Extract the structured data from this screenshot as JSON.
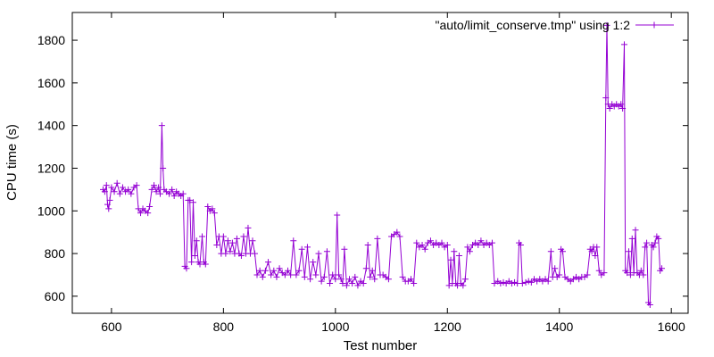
{
  "chart_data": {
    "type": "line",
    "title": "",
    "xlabel": "Test number",
    "ylabel": "CPU time (s)",
    "xlim": [
      530,
      1630
    ],
    "ylim": [
      520,
      1930
    ],
    "x_ticks": [
      600,
      800,
      1000,
      1200,
      1400,
      1600
    ],
    "y_ticks": [
      600,
      800,
      1000,
      1200,
      1400,
      1600,
      1800
    ],
    "grid": false,
    "legend_position": "top-right",
    "series": [
      {
        "name": "\"auto/limit_conserve.tmp\" using 1:2",
        "color": "#9400d3",
        "marker": "plus",
        "anchors": [
          [
            585,
            1100
          ],
          [
            588,
            1090
          ],
          [
            591,
            1120
          ],
          [
            593,
            1030
          ],
          [
            595,
            1010
          ],
          [
            597,
            1050
          ],
          [
            600,
            1110
          ],
          [
            605,
            1090
          ],
          [
            610,
            1130
          ],
          [
            615,
            1080
          ],
          [
            620,
            1110
          ],
          [
            625,
            1090
          ],
          [
            630,
            1100
          ],
          [
            635,
            1080
          ],
          [
            640,
            1110
          ],
          [
            645,
            1120
          ],
          [
            648,
            1010
          ],
          [
            652,
            990
          ],
          [
            656,
            1010
          ],
          [
            660,
            1000
          ],
          [
            665,
            990
          ],
          [
            668,
            1020
          ],
          [
            672,
            1100
          ],
          [
            676,
            1120
          ],
          [
            680,
            1090
          ],
          [
            684,
            1110
          ],
          [
            687,
            1080
          ],
          [
            690,
            1400
          ],
          [
            692,
            1200
          ],
          [
            694,
            1100
          ],
          [
            698,
            1090
          ],
          [
            703,
            1080
          ],
          [
            708,
            1100
          ],
          [
            712,
            1070
          ],
          [
            716,
            1090
          ],
          [
            720,
            1080
          ],
          [
            724,
            1070
          ],
          [
            728,
            1080
          ],
          [
            731,
            740
          ],
          [
            734,
            730
          ],
          [
            737,
            1050
          ],
          [
            740,
            1050
          ],
          [
            743,
            760
          ],
          [
            746,
            1040
          ],
          [
            749,
            790
          ],
          [
            752,
            860
          ],
          [
            755,
            760
          ],
          [
            758,
            750
          ],
          [
            762,
            880
          ],
          [
            765,
            760
          ],
          [
            768,
            750
          ],
          [
            772,
            1020
          ],
          [
            776,
            1000
          ],
          [
            780,
            1010
          ],
          [
            784,
            990
          ],
          [
            788,
            840
          ],
          [
            792,
            880
          ],
          [
            796,
            800
          ],
          [
            800,
            880
          ],
          [
            804,
            800
          ],
          [
            808,
            860
          ],
          [
            812,
            810
          ],
          [
            816,
            850
          ],
          [
            820,
            800
          ],
          [
            824,
            870
          ],
          [
            828,
            800
          ],
          [
            832,
            790
          ],
          [
            836,
            880
          ],
          [
            840,
            800
          ],
          [
            844,
            920
          ],
          [
            848,
            800
          ],
          [
            852,
            860
          ],
          [
            856,
            800
          ],
          [
            860,
            700
          ],
          [
            865,
            720
          ],
          [
            870,
            690
          ],
          [
            875,
            720
          ],
          [
            880,
            760
          ],
          [
            885,
            700
          ],
          [
            890,
            720
          ],
          [
            895,
            690
          ],
          [
            900,
            730
          ],
          [
            905,
            710
          ],
          [
            910,
            700
          ],
          [
            915,
            720
          ],
          [
            920,
            700
          ],
          [
            925,
            860
          ],
          [
            930,
            700
          ],
          [
            935,
            720
          ],
          [
            940,
            820
          ],
          [
            945,
            690
          ],
          [
            950,
            830
          ],
          [
            955,
            680
          ],
          [
            960,
            760
          ],
          [
            965,
            700
          ],
          [
            970,
            800
          ],
          [
            975,
            670
          ],
          [
            980,
            690
          ],
          [
            985,
            810
          ],
          [
            990,
            660
          ],
          [
            995,
            700
          ],
          [
            1000,
            680
          ],
          [
            1003,
            980
          ],
          [
            1006,
            700
          ],
          [
            1010,
            680
          ],
          [
            1013,
            660
          ],
          [
            1016,
            820
          ],
          [
            1020,
            650
          ],
          [
            1025,
            680
          ],
          [
            1030,
            660
          ],
          [
            1035,
            690
          ],
          [
            1040,
            650
          ],
          [
            1045,
            670
          ],
          [
            1050,
            660
          ],
          [
            1055,
            730
          ],
          [
            1058,
            840
          ],
          [
            1062,
            690
          ],
          [
            1066,
            720
          ],
          [
            1070,
            680
          ],
          [
            1075,
            870
          ],
          [
            1080,
            700
          ],
          [
            1085,
            700
          ],
          [
            1090,
            690
          ],
          [
            1095,
            680
          ],
          [
            1100,
            880
          ],
          [
            1105,
            890
          ],
          [
            1110,
            900
          ],
          [
            1115,
            880
          ],
          [
            1120,
            690
          ],
          [
            1125,
            670
          ],
          [
            1130,
            670
          ],
          [
            1135,
            680
          ],
          [
            1140,
            660
          ],
          [
            1145,
            850
          ],
          [
            1150,
            830
          ],
          [
            1155,
            840
          ],
          [
            1160,
            820
          ],
          [
            1165,
            850
          ],
          [
            1170,
            860
          ],
          [
            1175,
            840
          ],
          [
            1180,
            850
          ],
          [
            1185,
            840
          ],
          [
            1190,
            850
          ],
          [
            1195,
            830
          ],
          [
            1200,
            840
          ],
          [
            1203,
            650
          ],
          [
            1206,
            770
          ],
          [
            1209,
            660
          ],
          [
            1212,
            810
          ],
          [
            1215,
            660
          ],
          [
            1218,
            650
          ],
          [
            1221,
            790
          ],
          [
            1224,
            660
          ],
          [
            1228,
            650
          ],
          [
            1232,
            680
          ],
          [
            1236,
            830
          ],
          [
            1240,
            810
          ],
          [
            1245,
            840
          ],
          [
            1250,
            850
          ],
          [
            1255,
            840
          ],
          [
            1260,
            860
          ],
          [
            1265,
            840
          ],
          [
            1270,
            850
          ],
          [
            1275,
            840
          ],
          [
            1280,
            850
          ],
          [
            1284,
            660
          ],
          [
            1290,
            670
          ],
          [
            1295,
            660
          ],
          [
            1300,
            665
          ],
          [
            1305,
            660
          ],
          [
            1310,
            670
          ],
          [
            1315,
            660
          ],
          [
            1320,
            665
          ],
          [
            1325,
            660
          ],
          [
            1328,
            850
          ],
          [
            1331,
            840
          ],
          [
            1334,
            660
          ],
          [
            1340,
            665
          ],
          [
            1345,
            670
          ],
          [
            1350,
            665
          ],
          [
            1355,
            680
          ],
          [
            1360,
            670
          ],
          [
            1365,
            680
          ],
          [
            1370,
            670
          ],
          [
            1375,
            680
          ],
          [
            1380,
            670
          ],
          [
            1385,
            810
          ],
          [
            1388,
            690
          ],
          [
            1392,
            730
          ],
          [
            1396,
            690
          ],
          [
            1400,
            700
          ],
          [
            1403,
            820
          ],
          [
            1406,
            810
          ],
          [
            1410,
            690
          ],
          [
            1415,
            680
          ],
          [
            1420,
            670
          ],
          [
            1425,
            680
          ],
          [
            1430,
            690
          ],
          [
            1435,
            680
          ],
          [
            1440,
            690
          ],
          [
            1445,
            690
          ],
          [
            1450,
            700
          ],
          [
            1455,
            820
          ],
          [
            1458,
            810
          ],
          [
            1461,
            830
          ],
          [
            1464,
            790
          ],
          [
            1467,
            830
          ],
          [
            1471,
            720
          ],
          [
            1475,
            700
          ],
          [
            1480,
            710
          ],
          [
            1483,
            1530
          ],
          [
            1485,
            1870
          ],
          [
            1487,
            1500
          ],
          [
            1490,
            1480
          ],
          [
            1494,
            1500
          ],
          [
            1498,
            1490
          ],
          [
            1502,
            1500
          ],
          [
            1506,
            1490
          ],
          [
            1510,
            1500
          ],
          [
            1513,
            1480
          ],
          [
            1516,
            1780
          ],
          [
            1518,
            720
          ],
          [
            1521,
            710
          ],
          [
            1524,
            810
          ],
          [
            1527,
            700
          ],
          [
            1530,
            870
          ],
          [
            1533,
            710
          ],
          [
            1536,
            910
          ],
          [
            1539,
            710
          ],
          [
            1543,
            700
          ],
          [
            1546,
            720
          ],
          [
            1550,
            700
          ],
          [
            1553,
            830
          ],
          [
            1556,
            850
          ],
          [
            1559,
            570
          ],
          [
            1562,
            560
          ],
          [
            1565,
            840
          ],
          [
            1568,
            830
          ],
          [
            1571,
            850
          ],
          [
            1574,
            880
          ],
          [
            1577,
            870
          ],
          [
            1580,
            720
          ],
          [
            1583,
            730
          ]
        ]
      }
    ]
  }
}
